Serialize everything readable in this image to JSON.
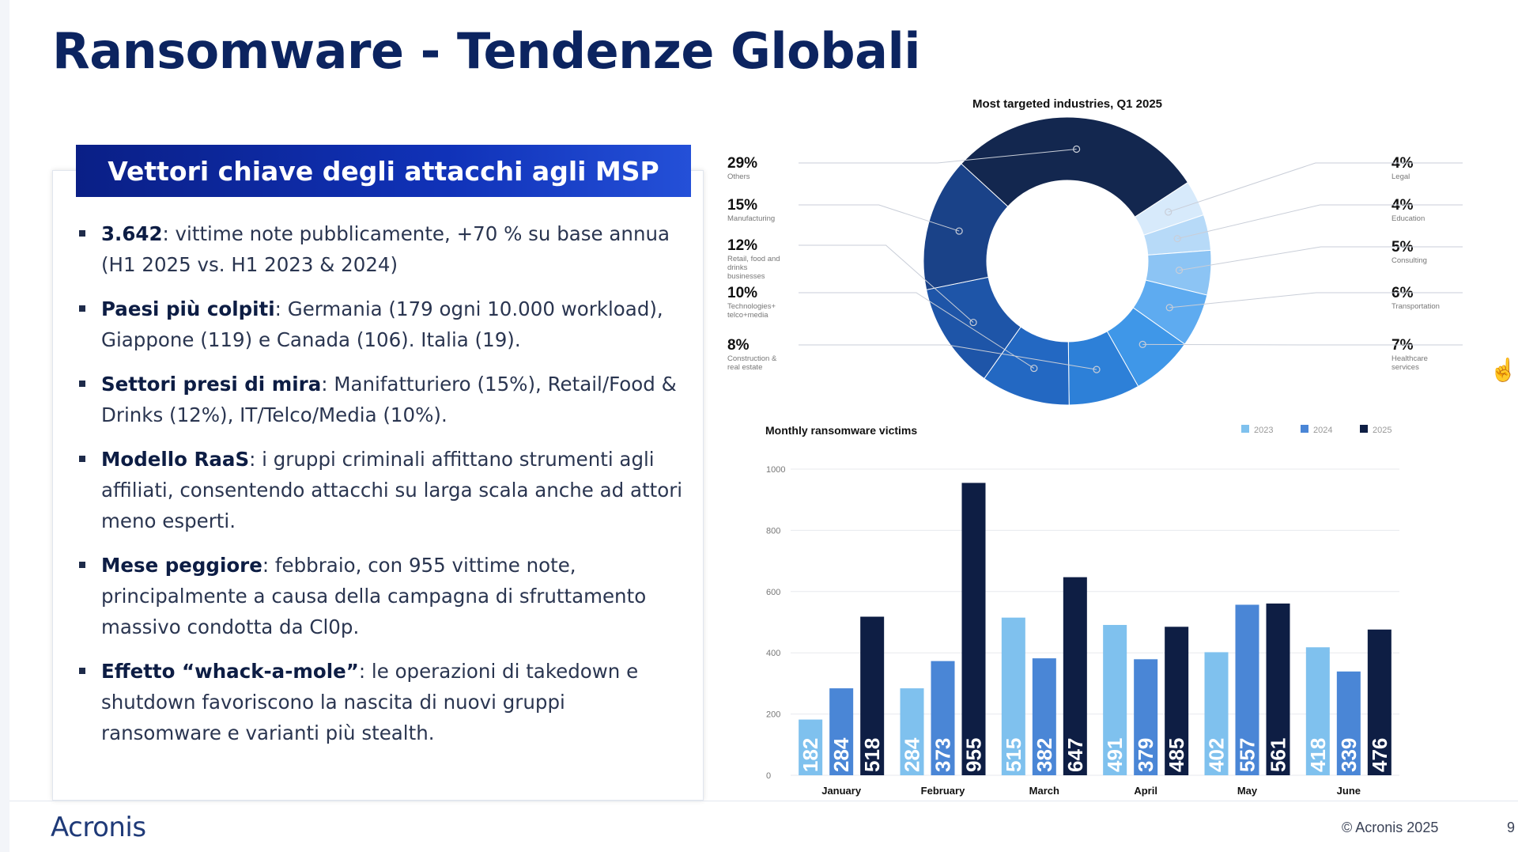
{
  "slide": {
    "title": "Ransomware - Tendenze Globali",
    "panel_title": "Vettori chiave degli attacchi agli MSP",
    "bullets": [
      {
        "bold": "3.642",
        "text": ": vittime note pubblicamente, +70 % su base annua (H1 2025 vs. H1 2023 & 2024)"
      },
      {
        "bold": "Paesi più colpiti",
        "text": ": Germania (179 ogni 10.000 workload), Giappone (119) e Canada (106). Italia (19)."
      },
      {
        "bold": "Settori presi di mira",
        "text": ": Manifatturiero (15%), Retail/Food & Drinks (12%), IT/Telco/Media (10%)."
      },
      {
        "bold": "Modello RaaS",
        "text": ": i gruppi criminali affittano strumenti agli affiliati, consentendo attacchi su larga scala anche ad attori meno esperti."
      },
      {
        "bold": "Mese peggiore",
        "text": ": febbraio, con 955 vittime note, principalmente a causa della campagna di sfruttamento massivo condotta da Cl0p."
      },
      {
        "bold": "Effetto “whack-a-mole”",
        "text": ": le operazioni di takedown e shutdown favoriscono la nascita di nuovi gruppi ransomware e varianti più stealth."
      }
    ]
  },
  "footer": {
    "logo": "Acronis",
    "copyright": "© Acronis 2025",
    "page_number": "9"
  },
  "icons": {
    "cursor": "hand-cursor-icon"
  },
  "colors": {
    "title": "#0c2460",
    "header_bg": "#0a1f86",
    "c2023": "#7fc1ee",
    "c2024": "#4a86d6",
    "c2025": "#0e1e44"
  },
  "chart_data": [
    {
      "type": "pie",
      "title": "Most targeted industries, Q1 2025",
      "donut": true,
      "slices": [
        {
          "label": "Others",
          "value": 29,
          "pct_label": "29%",
          "color": "#13274f"
        },
        {
          "label": "Legal",
          "value": 4,
          "pct_label": "4%",
          "color": "#d7eafb"
        },
        {
          "label": "Education",
          "value": 4,
          "pct_label": "4%",
          "color": "#b7daf8"
        },
        {
          "label": "Consulting",
          "value": 5,
          "pct_label": "5%",
          "color": "#8cc4f4"
        },
        {
          "label": "Transportation",
          "value": 6,
          "pct_label": "6%",
          "color": "#5eabf0"
        },
        {
          "label": "Healthcare services",
          "value": 7,
          "pct_label": "7%",
          "color": "#3f97e8"
        },
        {
          "label": "Construction & real estate",
          "value": 8,
          "pct_label": "8%",
          "color": "#2d80d8"
        },
        {
          "label": "Technologies+ telco+media",
          "value": 10,
          "pct_label": "10%",
          "color": "#2368c2"
        },
        {
          "label": "Retail, food and drinks businesses",
          "value": 12,
          "pct_label": "12%",
          "color": "#1e55a8"
        },
        {
          "label": "Manufacturing",
          "value": 15,
          "pct_label": "15%",
          "color": "#1a4288"
        }
      ]
    },
    {
      "type": "bar",
      "title": "Monthly ransomware victims",
      "categories": [
        "January",
        "February",
        "March",
        "April",
        "May",
        "June"
      ],
      "series": [
        {
          "name": "2023",
          "values": [
            182,
            284,
            515,
            491,
            402,
            418
          ],
          "color": "#7fc1ee"
        },
        {
          "name": "2024",
          "values": [
            284,
            373,
            382,
            379,
            557,
            339
          ],
          "color": "#4a86d6"
        },
        {
          "name": "2025",
          "values": [
            518,
            955,
            647,
            485,
            561,
            476
          ],
          "color": "#0e1e44"
        }
      ],
      "ylim": [
        0,
        1000
      ],
      "yticks": [
        0,
        200,
        400,
        600,
        800,
        1000
      ],
      "legend_position": "top-right",
      "grid": true
    }
  ]
}
